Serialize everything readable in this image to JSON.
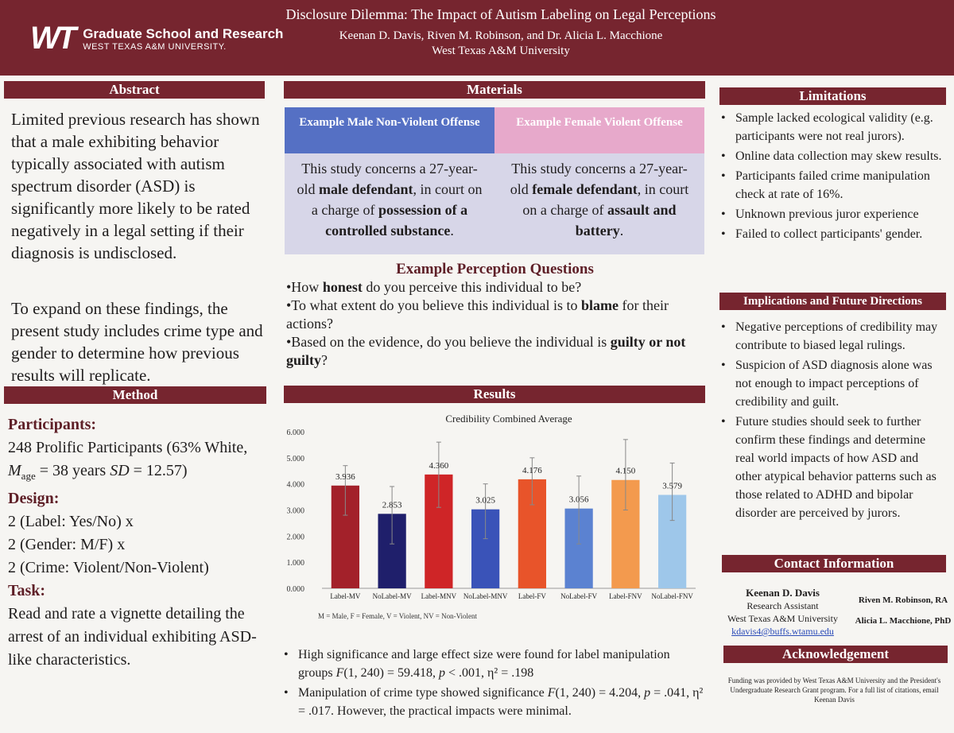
{
  "header": {
    "logo_mark": "WT",
    "logo_line1": "Graduate School and Research",
    "logo_line2": "WEST TEXAS A&M UNIVERSITY.",
    "title": "Disclosure Dilemma: The Impact of Autism Labeling on Legal Perceptions",
    "authors": "Keenan D. Davis, Riven M. Robinson, and Dr. Alicia L. Macchione",
    "university": "West Texas A&M University"
  },
  "abstract": {
    "title": "Abstract",
    "p1": "Limited previous research has shown that a male exhibiting behavior typically associated with autism spectrum disorder (ASD) is significantly more likely to be rated negatively in a legal setting if their diagnosis is undisclosed.",
    "p2": "To expand on these findings, the present study includes crime type and gender to determine how previous results will replicate."
  },
  "method": {
    "title": "Method",
    "participants_h": "Participants:",
    "participants_a": "248 Prolific Participants (63% White, ",
    "m_sym": "M",
    "m_sub": "age",
    "participants_b": " = 38 years ",
    "sd_sym": "SD",
    "participants_c": " = 12.57)",
    "design_h": "Design:",
    "design_1": "2 (Label: Yes/No) x",
    "design_2": "2 (Gender: M/F) x",
    "design_3": "2 (Crime: Violent/Non-Violent)",
    "task_h": "Task:",
    "task": "Read and rate a vignette detailing the arrest of an individual exhibiting ASD-like characteristics."
  },
  "materials": {
    "title": "Materials",
    "male_head": "Example Male Non-Violent Offense",
    "male_pre": "This study concerns a 27-year-old ",
    "male_bold1": "male defendant",
    "male_mid": ", in court on a charge of ",
    "male_bold2": "possession of a controlled substance",
    "male_end": ".",
    "female_head": "Example Female Violent Offense",
    "female_pre": "This study concerns a 27-year-old ",
    "female_bold1": "female defendant",
    "female_mid": ", in court on a charge of ",
    "female_bold2": "assault and battery",
    "female_end": ".",
    "pq_title": "Example Perception Questions",
    "q1_a": "•How ",
    "q1_b": "honest",
    "q1_c": " do you perceive this individual to be?",
    "q2_a": "•To what extent do you believe this individual is to ",
    "q2_b": "blame",
    "q2_c": " for their actions?",
    "q3_a": "•Based on the evidence, do you believe the individual is ",
    "q3_b": "guilty or not guilty",
    "q3_c": "?"
  },
  "results": {
    "title": "Results",
    "bullet1_a": "High significance and large effect size were found for label manipulation groups ",
    "bullet1_b": "F",
    "bullet1_c": "(1, 240) = 59.418, ",
    "bullet1_d": "p",
    "bullet1_e": " < .001, η² = .198",
    "bullet2_a": "Manipulation of crime type showed significance ",
    "bullet2_b": "F",
    "bullet2_c": "(1, 240) = 4.204, ",
    "bullet2_d": "p",
    "bullet2_e": " = .041, η² = .017. However, the practical impacts were minimal."
  },
  "chart_data": {
    "type": "bar",
    "title": "Credibility Combined Average",
    "categories": [
      "Label-MV",
      "NoLabel-MV",
      "Label-MNV",
      "NoLabel-MNV",
      "Label-FV",
      "NoLabel-FV",
      "Label-FNV",
      "NoLabel-FNV"
    ],
    "values": [
      3.936,
      2.853,
      4.36,
      3.025,
      4.176,
      3.056,
      4.15,
      3.579
    ],
    "value_labels": [
      "3.936",
      "2.853",
      "4.360",
      "3.025",
      "4.176",
      "3.056",
      "4.150",
      "3.579"
    ],
    "error_low": [
      2.8,
      1.7,
      3.1,
      1.9,
      3.2,
      1.7,
      3.0,
      2.6
    ],
    "error_high": [
      4.7,
      3.9,
      5.6,
      4.0,
      5.0,
      4.3,
      5.7,
      4.8
    ],
    "ylim": [
      0,
      6
    ],
    "y_ticks": [
      "0.000",
      "1.000",
      "2.000",
      "3.000",
      "4.000",
      "5.000",
      "6.000"
    ],
    "colors": [
      "#a3212a",
      "#1f1f6b",
      "#cf2527",
      "#3a53b8",
      "#e8542a",
      "#5b82d1",
      "#f39a4e",
      "#9ec7ea"
    ],
    "note": "M = Male, F = Female, V = Violent, NV = Non-Violent"
  },
  "limitations": {
    "title": "Limitations",
    "items": [
      "Sample lacked ecological validity (e.g. participants were not real jurors).",
      "Online data collection may skew results.",
      "Participants failed crime manipulation check at rate of 16%.",
      "Unknown previous juror experience",
      "Failed to collect participants' gender."
    ]
  },
  "implications": {
    "title": "Implications and Future Directions",
    "items": [
      "Negative perceptions of credibility may contribute to biased legal rulings.",
      "Suspicion of ASD diagnosis alone was not enough to impact perceptions of credibility and guilt.",
      "Future studies should seek to further confirm these findings and determine real world impacts of how ASD and other atypical behavior patterns such as those related to ADHD and bipolar disorder are perceived by jurors."
    ]
  },
  "contact": {
    "title": "Contact Information",
    "name": "Keenan D. Davis",
    "role": "Research Assistant",
    "univ": "West Texas A&M University",
    "email": "kdavis4@buffs.wtamu.edu",
    "other1": "Riven M. Robinson, RA",
    "other2": "Alicia L. Macchione, PhD"
  },
  "acknowledgement": {
    "title": "Acknowledgement",
    "text": "Funding was provided by West Texas A&M University and the President's Undergraduate Research Grant program. For a full list of citations, email Keenan Davis"
  },
  "colors": {
    "maroon": "#76252f",
    "male_box_head": "#5570c4",
    "female_box_head": "#e7a9cb",
    "box_body": "#d7d6e8"
  }
}
